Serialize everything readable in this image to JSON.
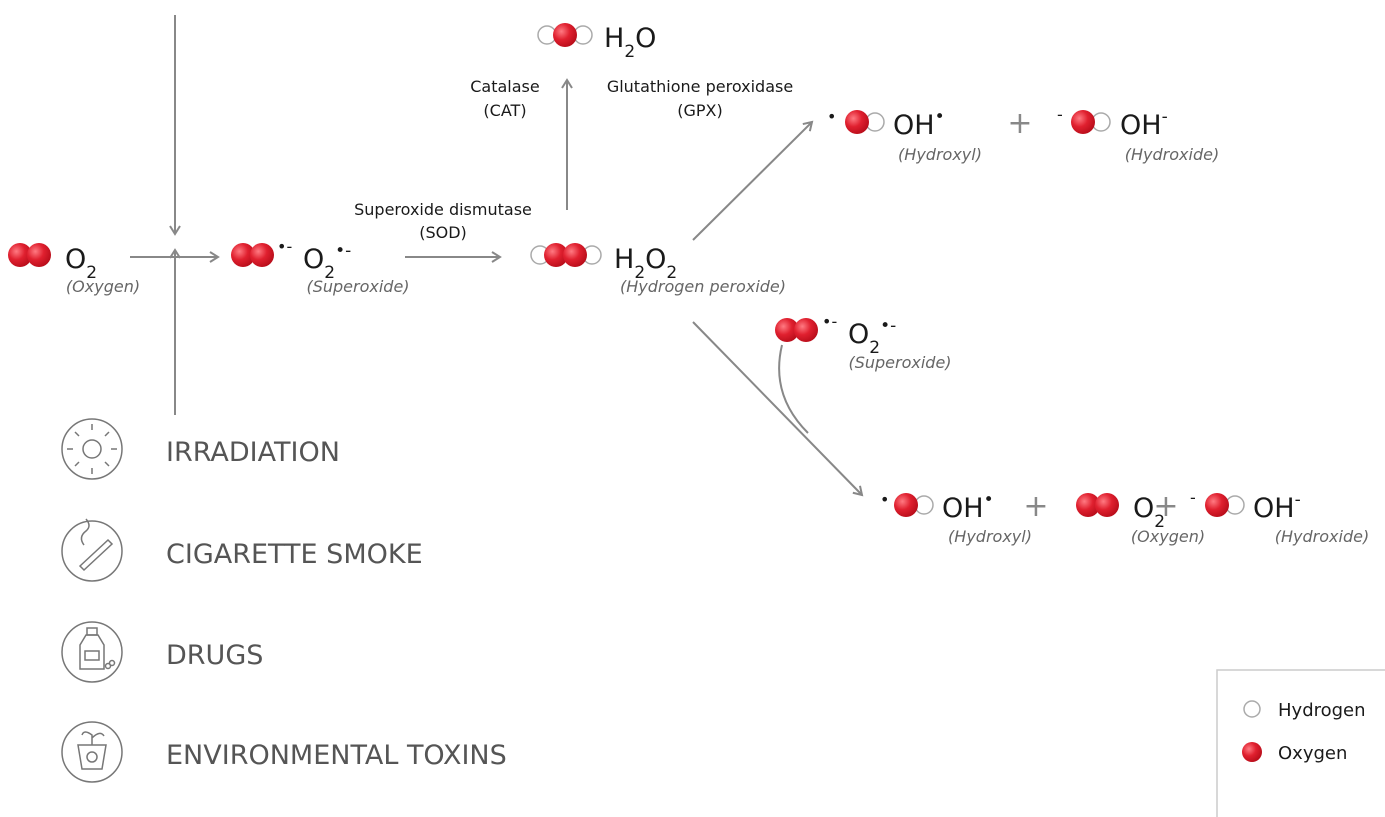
{
  "species": [
    {
      "formula": [
        {
          "text": "O"
        },
        {
          "sub": "2"
        }
      ],
      "label": "(Oxygen)"
    },
    {
      "prefix": "•-",
      "formula": [
        {
          "text": "O"
        },
        {
          "sub": "2"
        },
        {
          "sup": "•-"
        }
      ],
      "label": "(Superoxide)"
    },
    {
      "formula": [
        {
          "text": "H"
        },
        {
          "sub": "2"
        },
        {
          "text": "O"
        },
        {
          "sub": "2"
        }
      ],
      "label": "(Hydrogen peroxide)"
    },
    {
      "formula": [
        {
          "text": "H"
        },
        {
          "sub": "2"
        },
        {
          "text": "O"
        }
      ]
    },
    {
      "prefix": "•",
      "formula": [
        {
          "text": "OH"
        },
        {
          "sup": "•"
        }
      ],
      "label": "(Hydroxyl)"
    },
    {
      "prefix": "-",
      "formula": [
        {
          "text": "OH"
        },
        {
          "sup": "-"
        }
      ],
      "label": "(Hydroxide)"
    },
    {
      "prefix": "•-",
      "formula": [
        {
          "text": "O"
        },
        {
          "sub": "2"
        },
        {
          "sup": "•-"
        }
      ],
      "label": "(Superoxide)"
    },
    {
      "prefix": "•",
      "formula": [
        {
          "text": "OH"
        },
        {
          "sup": "•"
        }
      ],
      "label": "(Hydroxyl)"
    },
    {
      "formula": [
        {
          "text": "O"
        },
        {
          "sub": "2"
        }
      ],
      "label": "(Oxygen)"
    },
    {
      "prefix": "-",
      "formula": [
        {
          "text": "OH"
        },
        {
          "sup": "-"
        }
      ],
      "label": "(Hydroxide)"
    }
  ],
  "operators": [
    "+",
    "+",
    "+"
  ],
  "enzymes": [
    {
      "name": "Catalase",
      "abbr": "(CAT)"
    },
    {
      "name": "Glutathione peroxidase",
      "abbr": "(GPX)"
    },
    {
      "name": "Superoxide dismutase",
      "abbr": "(SOD)"
    }
  ],
  "sources": [
    "IRRADIATION",
    "CIGARETTE SMOKE",
    "DRUGS",
    "ENVIRONMENTAL TOXINS"
  ],
  "legend": [
    "Hydrogen",
    "Oxygen"
  ]
}
